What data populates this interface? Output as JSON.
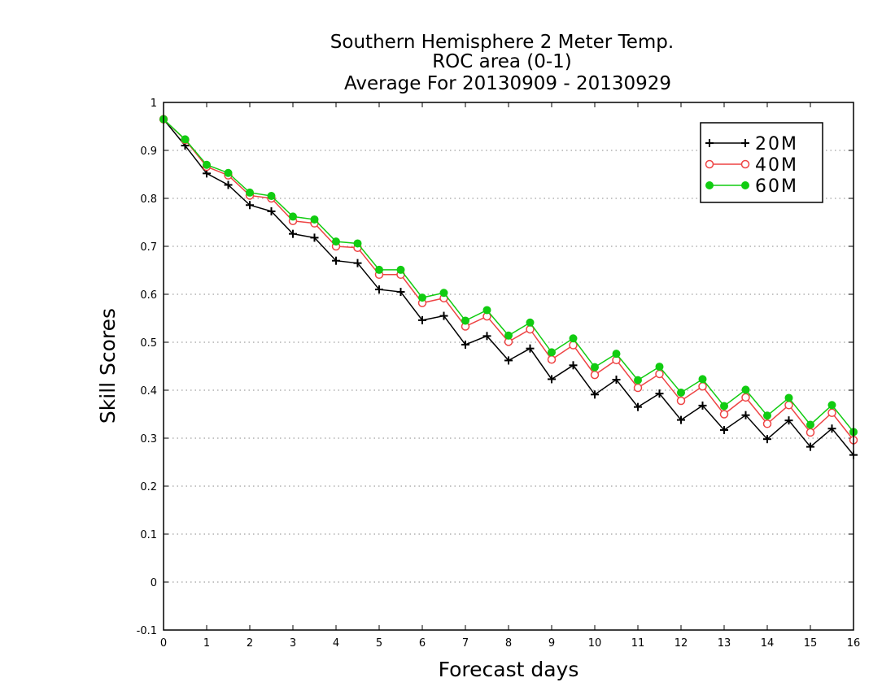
{
  "chart_data": {
    "type": "line",
    "title_lines": [
      "Southern Hemisphere 2 Meter Temp.",
      "ROC area (0-1)",
      "Average For 20130909 - 20130929"
    ],
    "xlabel": "Forecast days",
    "ylabel": "Skill Scores",
    "xlim": [
      0,
      16
    ],
    "ylim": [
      -0.1,
      1
    ],
    "xticks": [
      "0",
      "1",
      "2",
      "3",
      "4",
      "5",
      "6",
      "7",
      "8",
      "9",
      "10",
      "11",
      "12",
      "13",
      "14",
      "15",
      "16"
    ],
    "yticks": [
      "-0.1",
      "0",
      "0.1",
      "0.2",
      "0.3",
      "0.4",
      "0.5",
      "0.6",
      "0.7",
      "0.8",
      "0.9",
      "1"
    ],
    "grid": "horizontal dotted",
    "legend_position": "top-right",
    "x": [
      0,
      0.5,
      1,
      1.5,
      2,
      2.5,
      3,
      3.5,
      4,
      4.5,
      5,
      5.5,
      6,
      6.5,
      7,
      7.5,
      8,
      8.5,
      9,
      9.5,
      10,
      10.5,
      11,
      11.5,
      12,
      12.5,
      13,
      13.5,
      14,
      14.5,
      15,
      15.5,
      16
    ],
    "series": [
      {
        "name": "20M",
        "color": "#000000",
        "marker": "plus",
        "values": [
          0.965,
          0.91,
          0.852,
          0.828,
          0.786,
          0.773,
          0.726,
          0.718,
          0.67,
          0.665,
          0.61,
          0.605,
          0.546,
          0.555,
          0.495,
          0.513,
          0.462,
          0.487,
          0.423,
          0.452,
          0.391,
          0.422,
          0.365,
          0.393,
          0.338,
          0.368,
          0.317,
          0.348,
          0.298,
          0.337,
          0.282,
          0.32,
          0.265
        ]
      },
      {
        "name": "40M",
        "color": "#ee4444",
        "marker": "open-circle",
        "values": [
          0.965,
          0.922,
          0.866,
          0.848,
          0.806,
          0.8,
          0.753,
          0.748,
          0.7,
          0.697,
          0.641,
          0.641,
          0.582,
          0.592,
          0.533,
          0.554,
          0.501,
          0.527,
          0.464,
          0.494,
          0.432,
          0.463,
          0.405,
          0.434,
          0.378,
          0.408,
          0.35,
          0.385,
          0.33,
          0.369,
          0.312,
          0.353,
          0.296
        ]
      },
      {
        "name": "60M",
        "color": "#11cc11",
        "marker": "filled-circle",
        "values": [
          0.965,
          0.923,
          0.87,
          0.853,
          0.812,
          0.805,
          0.762,
          0.756,
          0.71,
          0.706,
          0.651,
          0.651,
          0.593,
          0.603,
          0.545,
          0.567,
          0.514,
          0.541,
          0.479,
          0.508,
          0.448,
          0.476,
          0.421,
          0.449,
          0.395,
          0.423,
          0.367,
          0.401,
          0.347,
          0.384,
          0.328,
          0.369,
          0.313
        ]
      }
    ]
  }
}
